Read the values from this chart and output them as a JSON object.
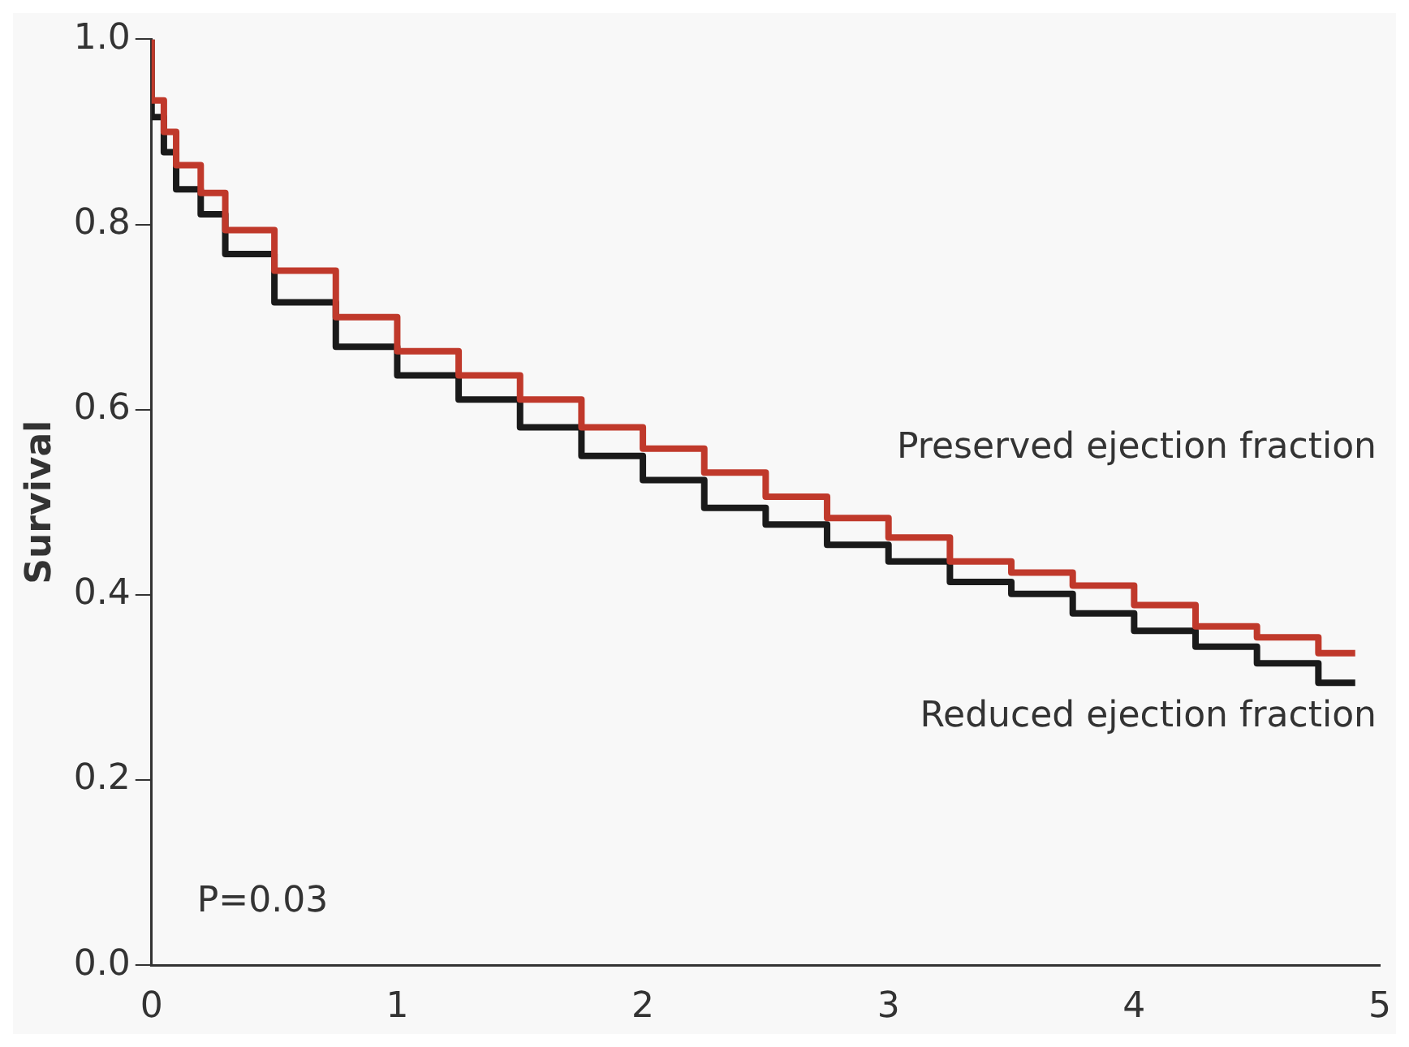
{
  "chart_data": {
    "type": "step",
    "ylabel": "Survival",
    "xlim": [
      0,
      5
    ],
    "xticks": [
      0,
      1,
      2,
      3,
      4,
      5
    ],
    "ylim": [
      0,
      1
    ],
    "yticks": [
      {
        "value": 0,
        "label": "0.0"
      },
      0.2,
      0.4,
      0.6,
      0.8,
      {
        "value": 1,
        "label": "1.0"
      }
    ],
    "grid": false,
    "legend": false,
    "annotations": [
      "P=0.03"
    ],
    "series": [
      {
        "name": "Preserved ejection fraction",
        "color": "#c0392b",
        "x": [
          0,
          0.05,
          0.1,
          0.2,
          0.3,
          0.5,
          0.75,
          1,
          1.25,
          1.5,
          1.75,
          2,
          2.25,
          2.5,
          2.75,
          3,
          3.25,
          3.5,
          3.75,
          4,
          4.25,
          4.5,
          4.75,
          4.9
        ],
        "values": [
          1.0,
          0.934,
          0.9,
          0.864,
          0.834,
          0.794,
          0.75,
          0.7,
          0.663,
          0.637,
          0.611,
          0.581,
          0.558,
          0.532,
          0.506,
          0.483,
          0.462,
          0.436,
          0.424,
          0.41,
          0.389,
          0.366,
          0.354,
          0.337
        ]
      },
      {
        "name": "Reduced ejection fraction",
        "color": "#1a1a1a",
        "x": [
          0,
          0.05,
          0.1,
          0.2,
          0.3,
          0.5,
          0.75,
          1,
          1.25,
          1.5,
          1.75,
          2,
          2.25,
          2.5,
          2.75,
          3,
          3.25,
          3.5,
          3.75,
          4,
          4.25,
          4.5,
          4.75,
          4.9
        ],
        "values": [
          1.0,
          0.916,
          0.878,
          0.838,
          0.811,
          0.768,
          0.716,
          0.668,
          0.637,
          0.611,
          0.581,
          0.55,
          0.524,
          0.494,
          0.476,
          0.454,
          0.436,
          0.414,
          0.401,
          0.38,
          0.361,
          0.344,
          0.326,
          0.305
        ]
      }
    ]
  }
}
